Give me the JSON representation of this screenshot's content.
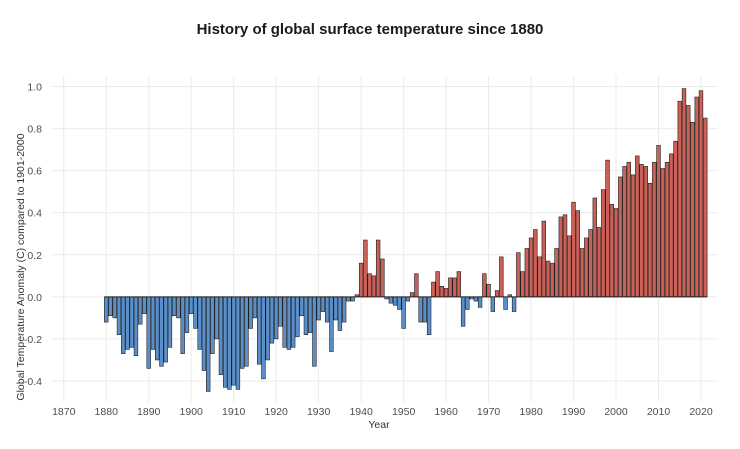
{
  "chart_data": {
    "type": "bar",
    "title": "History of global surface temperature since 1880",
    "xlabel": "Year",
    "ylabel": "Global Temperature Anomaly (C) compared to 1901-2000",
    "xlim": [
      1867,
      2024
    ],
    "ylim": [
      -0.5,
      1.05
    ],
    "x_ticks": [
      1870,
      1880,
      1890,
      1900,
      1910,
      1920,
      1930,
      1940,
      1950,
      1960,
      1970,
      1980,
      1990,
      2000,
      2010,
      2020
    ],
    "y_ticks": [
      -0.4,
      -0.2,
      0.0,
      0.2,
      0.4,
      0.6,
      0.8,
      1.0
    ],
    "y_tick_labels": [
      "-0.4",
      "-0.2",
      "0.0",
      "0.2",
      "0.4",
      "0.6",
      "0.8",
      "1.0"
    ],
    "grid": true,
    "colors": {
      "positive": "#c96158",
      "negative": "#5b8fc9",
      "outline": "#1f1f1f"
    },
    "years": [
      1880,
      1881,
      1882,
      1883,
      1884,
      1885,
      1886,
      1887,
      1888,
      1889,
      1890,
      1891,
      1892,
      1893,
      1894,
      1895,
      1896,
      1897,
      1898,
      1899,
      1900,
      1901,
      1902,
      1903,
      1904,
      1905,
      1906,
      1907,
      1908,
      1909,
      1910,
      1911,
      1912,
      1913,
      1914,
      1915,
      1916,
      1917,
      1918,
      1919,
      1920,
      1921,
      1922,
      1923,
      1924,
      1925,
      1926,
      1927,
      1928,
      1929,
      1930,
      1931,
      1932,
      1933,
      1934,
      1935,
      1936,
      1937,
      1938,
      1939,
      1940,
      1941,
      1942,
      1943,
      1944,
      1945,
      1946,
      1947,
      1948,
      1949,
      1950,
      1951,
      1952,
      1953,
      1954,
      1955,
      1956,
      1957,
      1958,
      1959,
      1960,
      1961,
      1962,
      1963,
      1964,
      1965,
      1966,
      1967,
      1968,
      1969,
      1970,
      1971,
      1972,
      1973,
      1974,
      1975,
      1976,
      1977,
      1978,
      1979,
      1980,
      1981,
      1982,
      1983,
      1984,
      1985,
      1986,
      1987,
      1988,
      1989,
      1990,
      1991,
      1992,
      1993,
      1994,
      1995,
      1996,
      1997,
      1998,
      1999,
      2000,
      2001,
      2002,
      2003,
      2004,
      2005,
      2006,
      2007,
      2008,
      2009,
      2010,
      2011,
      2012,
      2013,
      2014,
      2015,
      2016,
      2017,
      2018,
      2019,
      2020,
      2021
    ],
    "values": [
      -0.12,
      -0.09,
      -0.1,
      -0.18,
      -0.27,
      -0.25,
      -0.24,
      -0.28,
      -0.13,
      -0.08,
      -0.34,
      -0.25,
      -0.3,
      -0.33,
      -0.31,
      -0.24,
      -0.09,
      -0.1,
      -0.27,
      -0.17,
      -0.08,
      -0.15,
      -0.25,
      -0.35,
      -0.45,
      -0.27,
      -0.2,
      -0.37,
      -0.43,
      -0.44,
      -0.42,
      -0.44,
      -0.34,
      -0.33,
      -0.15,
      -0.1,
      -0.32,
      -0.39,
      -0.3,
      -0.22,
      -0.2,
      -0.14,
      -0.24,
      -0.25,
      -0.24,
      -0.19,
      -0.09,
      -0.18,
      -0.17,
      -0.33,
      -0.11,
      -0.07,
      -0.12,
      -0.26,
      -0.11,
      -0.16,
      -0.12,
      -0.02,
      -0.02,
      0.01,
      0.16,
      0.27,
      0.11,
      0.1,
      0.27,
      0.18,
      -0.01,
      -0.03,
      -0.04,
      -0.06,
      -0.15,
      -0.02,
      0.02,
      0.11,
      -0.12,
      -0.12,
      -0.18,
      0.07,
      0.12,
      0.05,
      0.04,
      0.09,
      0.09,
      0.12,
      -0.14,
      -0.06,
      -0.01,
      -0.02,
      -0.05,
      0.11,
      0.06,
      -0.07,
      0.03,
      0.19,
      -0.06,
      0.01,
      -0.07,
      0.21,
      0.12,
      0.23,
      0.28,
      0.32,
      0.19,
      0.36,
      0.17,
      0.16,
      0.23,
      0.38,
      0.39,
      0.29,
      0.45,
      0.41,
      0.23,
      0.28,
      0.32,
      0.47,
      0.33,
      0.51,
      0.65,
      0.44,
      0.42,
      0.57,
      0.62,
      0.64,
      0.58,
      0.67,
      0.63,
      0.62,
      0.54,
      0.64,
      0.72,
      0.61,
      0.64,
      0.68,
      0.74,
      0.93,
      0.99,
      0.91,
      0.83,
      0.95,
      0.98,
      0.85
    ]
  }
}
